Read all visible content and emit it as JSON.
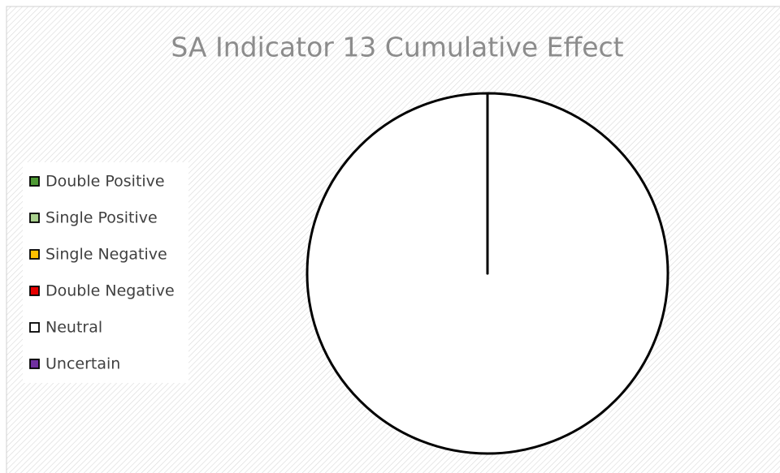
{
  "chart_data": {
    "type": "pie",
    "title": "SA Indicator 13 Cumulative Effect",
    "categories": [
      "Double Positive",
      "Single Positive",
      "Single Negative",
      "Double Negative",
      "Neutral",
      "Uncertain"
    ],
    "values": [
      0,
      0,
      0,
      0,
      100,
      0
    ],
    "colors": [
      "#4f9a35",
      "#a9d18e",
      "#ffc000",
      "#e60000",
      "#ffffff",
      "#7030a0"
    ],
    "legend": "left"
  }
}
